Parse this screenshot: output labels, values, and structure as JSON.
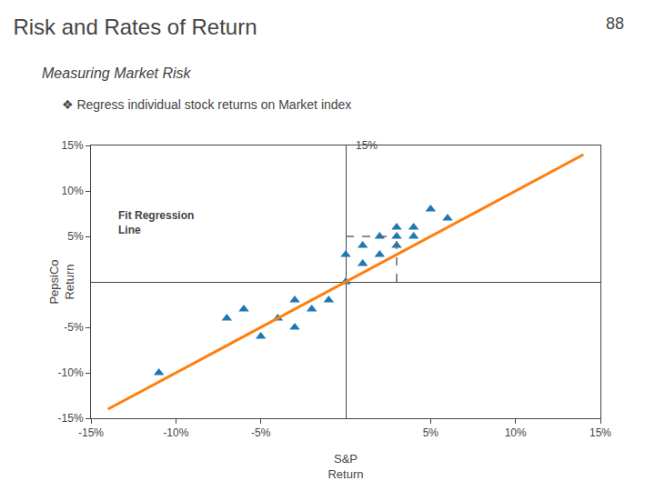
{
  "chart_data": {
    "type": "scatter",
    "title": "Risk and Rates of Return",
    "subtitle": "Measuring Market Risk",
    "page_label": "88",
    "bullet_symbol": "❖",
    "bullet": "Regress individual stock returns on Market index",
    "xlabel": "S&P\nReturn",
    "ylabel": "PepsiCo\nReturn",
    "series": [
      {
        "type": "scatter",
        "marker": "triangle",
        "x": [
          -4,
          -5,
          -3,
          -2,
          -1,
          0,
          1,
          2,
          3,
          4,
          -6,
          -7,
          -11,
          -3,
          0,
          1,
          2,
          3,
          5,
          6,
          3,
          4
        ],
        "values": [
          -4,
          -6,
          -5,
          -3,
          -2,
          0,
          2,
          3,
          4,
          5,
          -3,
          -4,
          -10,
          -2,
          3,
          4,
          5,
          6,
          8,
          7,
          5,
          6
        ]
      },
      {
        "type": "line",
        "line_style": "solid",
        "x": [
          -14,
          14
        ],
        "values": [
          -14,
          14
        ]
      },
      {
        "type": "line",
        "line_style": "dashed",
        "x": [
          0,
          3
        ],
        "values": [
          5,
          5
        ]
      },
      {
        "type": "line",
        "line_style": "dashed",
        "x": [
          3,
          3
        ],
        "values": [
          0,
          5
        ]
      }
    ],
    "annotations": [
      {
        "text": "Fit Regression\nLine",
        "x": -13.5,
        "y": 6.5
      },
      {
        "text": "15%",
        "x": 0.5,
        "y": 15
      }
    ],
    "xlim": [
      -15,
      15
    ],
    "ylim": [
      -15,
      15
    ],
    "xticks": [
      {
        "value": -15,
        "label": "-15%"
      },
      {
        "value": -10,
        "label": "-10%"
      },
      {
        "value": -5,
        "label": "-5%"
      },
      {
        "value": 5,
        "label": "5%"
      },
      {
        "value": 10,
        "label": "10%"
      },
      {
        "value": 15,
        "label": "15%"
      }
    ],
    "yticks": [
      {
        "value": -15,
        "label": "-15%"
      },
      {
        "value": -10,
        "label": "-10%"
      },
      {
        "value": -5,
        "label": "-5%"
      },
      {
        "value": 5,
        "label": "5%"
      },
      {
        "value": 10,
        "label": "10%"
      },
      {
        "value": 15,
        "label": "15%"
      }
    ],
    "grid": false
  }
}
